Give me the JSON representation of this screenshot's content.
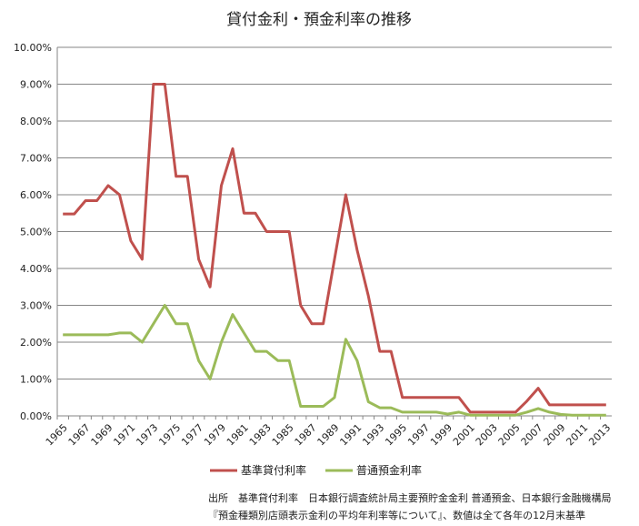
{
  "chart_data": {
    "type": "line",
    "title": "貸付金利・預金利率の推移",
    "xlabel": "",
    "ylabel": "",
    "ylim": [
      0,
      10
    ],
    "grid": true,
    "legend_position": "bottom",
    "y_ticks": [
      "0.00%",
      "1.00%",
      "2.00%",
      "3.00%",
      "4.00%",
      "5.00%",
      "6.00%",
      "7.00%",
      "8.00%",
      "9.00%",
      "10.00%"
    ],
    "x_tick_labels": [
      "1965",
      "1967",
      "1969",
      "1971",
      "1973",
      "1975",
      "1977",
      "1979",
      "1981",
      "1983",
      "1985",
      "1987",
      "1989",
      "1991",
      "1993",
      "1995",
      "1997",
      "1999",
      "2001",
      "2003",
      "2005",
      "2007",
      "2009",
      "2011",
      "2013"
    ],
    "x": [
      1965,
      1966,
      1967,
      1968,
      1969,
      1970,
      1971,
      1972,
      1973,
      1974,
      1975,
      1976,
      1977,
      1978,
      1979,
      1980,
      1981,
      1982,
      1983,
      1984,
      1985,
      1986,
      1987,
      1988,
      1989,
      1990,
      1991,
      1992,
      1993,
      1994,
      1995,
      1996,
      1997,
      1998,
      1999,
      2000,
      2001,
      2002,
      2003,
      2004,
      2005,
      2006,
      2007,
      2008,
      2009,
      2010,
      2011,
      2012,
      2013
    ],
    "series": [
      {
        "name": "基準貸付利率",
        "color": "#c0504d",
        "values": [
          5.48,
          5.48,
          5.84,
          5.84,
          6.25,
          6.0,
          4.75,
          4.25,
          9.0,
          9.0,
          6.5,
          6.5,
          4.25,
          3.5,
          6.25,
          7.25,
          5.5,
          5.5,
          5.0,
          5.0,
          5.0,
          3.0,
          2.5,
          2.5,
          4.25,
          6.0,
          4.5,
          3.25,
          1.75,
          1.75,
          0.5,
          0.5,
          0.5,
          0.5,
          0.5,
          0.5,
          0.1,
          0.1,
          0.1,
          0.1,
          0.1,
          0.4,
          0.75,
          0.3,
          0.3,
          0.3,
          0.3,
          0.3,
          0.3
        ]
      },
      {
        "name": "普通預金利率",
        "color": "#9bbb59",
        "values": [
          2.2,
          2.2,
          2.2,
          2.2,
          2.2,
          2.25,
          2.25,
          2.0,
          2.5,
          3.0,
          2.5,
          2.5,
          1.5,
          1.0,
          2.0,
          2.75,
          2.25,
          1.75,
          1.75,
          1.5,
          1.5,
          0.26,
          0.26,
          0.26,
          0.5,
          2.08,
          1.5,
          0.38,
          0.22,
          0.22,
          0.1,
          0.1,
          0.1,
          0.1,
          0.05,
          0.1,
          0.02,
          0.02,
          0.02,
          0.02,
          0.02,
          0.1,
          0.2,
          0.1,
          0.04,
          0.02,
          0.02,
          0.02,
          0.02
        ]
      }
    ]
  },
  "source_note": {
    "line1": "出所　基準貸付利率　日本銀行調査統計局主要預貯金金利 普通預金、日本銀行金融機構局",
    "line2": "『預金種類別店頭表示金利の平均年利率等について』、数値は全て各年の12月末基準"
  }
}
